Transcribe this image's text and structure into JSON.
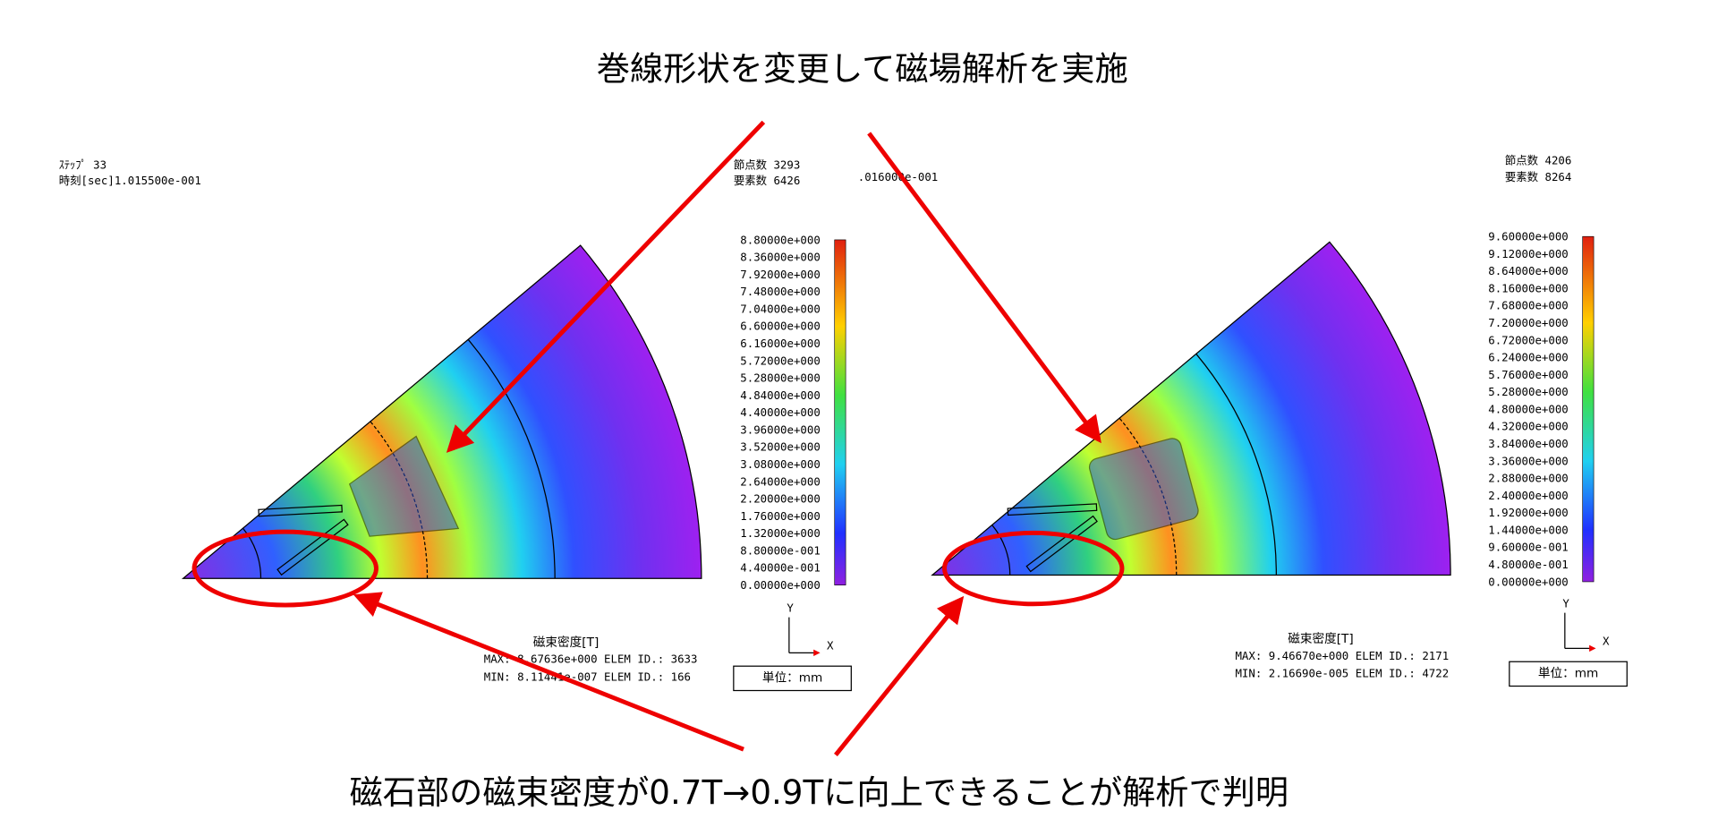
{
  "title": "巻線形状を変更して磁場解析を実施",
  "caption": "磁石部の磁束密度が0.7T→0.9Tに向上できることが解析で判明",
  "left": {
    "step": "ｽﾃｯﾌﾟ 33",
    "time": "時刻[sec]1.015500e-001",
    "nodes": "節点数 3293",
    "elements": "要素数 6426",
    "scale": [
      "8.80000e+000",
      "8.36000e+000",
      "7.92000e+000",
      "7.48000e+000",
      "7.04000e+000",
      "6.60000e+000",
      "6.16000e+000",
      "5.72000e+000",
      "5.28000e+000",
      "4.84000e+000",
      "4.40000e+000",
      "3.96000e+000",
      "3.52000e+000",
      "3.08000e+000",
      "2.64000e+000",
      "2.20000e+000",
      "1.76000e+000",
      "1.32000e+000",
      "8.80000e-001",
      "4.40000e-001",
      "0.00000e+000"
    ],
    "legend_title": "磁束密度[T]",
    "max": "MAX: 8.67636e+000 ELEM ID.: 3633",
    "min": "MIN: 8.11441e-007 ELEM ID.: 166",
    "axis_y": "Y",
    "axis_x": "X",
    "unit": "単位：mm"
  },
  "right": {
    "time_partial": ".016000e-001",
    "nodes": "節点数 4206",
    "elements": "要素数 8264",
    "scale": [
      "9.60000e+000",
      "9.12000e+000",
      "8.64000e+000",
      "8.16000e+000",
      "7.68000e+000",
      "7.20000e+000",
      "6.72000e+000",
      "6.24000e+000",
      "5.76000e+000",
      "5.28000e+000",
      "4.80000e+000",
      "4.32000e+000",
      "3.84000e+000",
      "3.36000e+000",
      "2.88000e+000",
      "2.40000e+000",
      "1.92000e+000",
      "1.44000e+000",
      "9.60000e-001",
      "4.80000e-001",
      "0.00000e+000"
    ],
    "legend_title": "磁束密度[T]",
    "max": "MAX: 9.46670e+000 ELEM ID.: 2171",
    "min": "MIN: 2.16690e-005 ELEM ID.: 4722",
    "axis_y": "Y",
    "axis_x": "X",
    "unit": "単位：mm"
  }
}
